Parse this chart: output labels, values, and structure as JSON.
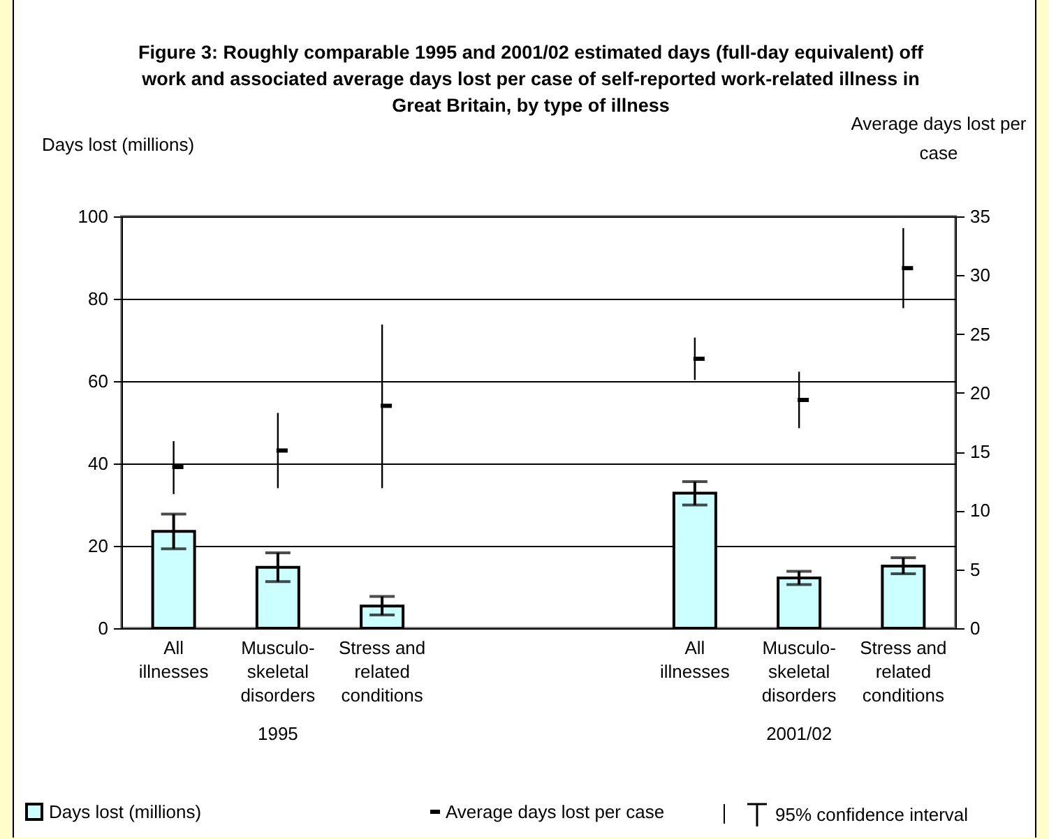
{
  "chart_data": {
    "type": "bar",
    "title": "Figure 3: Roughly comparable 1995 and 2001/02 estimated days (full-day equivalent) off work and associated average days lost per case of self-reported work-related illness in Great Britain, by type of illness",
    "ylabel": "Days lost (millions)",
    "y2label": "Average days lost per case",
    "categories": [
      "All illnesses",
      "Musculo-skeletal disorders",
      "Stress and related conditions",
      null,
      null,
      "All illnesses",
      "Musculo-skeletal disorders",
      "Stress and related conditions"
    ],
    "series": [
      {
        "name": "Days lost (millions)",
        "color": "#ccffff",
        "values": [
          23.5,
          14.8,
          5.4,
          null,
          null,
          32.8,
          12.2,
          15.1
        ],
        "errors": [
          [
            19.3,
            27.7
          ],
          [
            11.3,
            18.3
          ],
          [
            3.2,
            7.7
          ],
          null,
          null,
          [
            29.9,
            35.6
          ],
          [
            10.6,
            13.8
          ],
          [
            13.2,
            17.1
          ]
        ]
      },
      {
        "name": "Average days lost per case",
        "type": "scatter",
        "axis": "y2",
        "color": "#000000",
        "values": [
          13.7,
          15.1,
          18.9,
          null,
          null,
          22.9,
          19.4,
          30.6
        ],
        "errors": [
          [
            11.4,
            15.9
          ],
          [
            11.9,
            18.3
          ],
          [
            11.9,
            25.8
          ],
          null,
          null,
          [
            21.1,
            24.7
          ],
          [
            17.0,
            21.8
          ],
          [
            27.2,
            34.0
          ]
        ]
      }
    ],
    "ylim": [
      0,
      100
    ],
    "yticks": [
      0,
      20,
      40,
      60,
      80,
      100
    ],
    "y2lim": [
      0,
      35
    ],
    "y2ticks": [
      0,
      5,
      10,
      15,
      20,
      25,
      30,
      35
    ],
    "grid": "y",
    "legend": "bottom",
    "annotations": [
      "1995",
      "2001/02",
      "95% confidence interval"
    ]
  }
}
